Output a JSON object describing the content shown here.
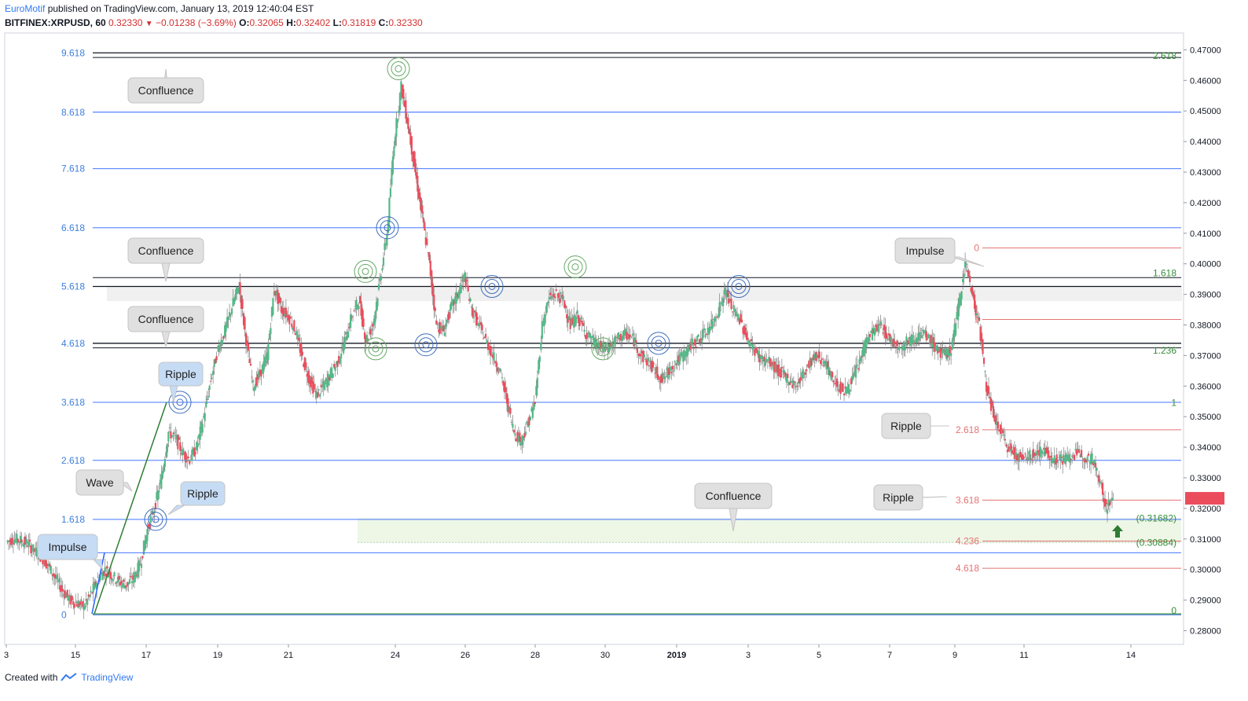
{
  "header": {
    "author": "EuroMotif",
    "published": "published on TradingView.com, January 13, 2019 12:40:04 EST",
    "symbol": "BITFINEX:XRPUSD, 60",
    "last": "0.32330",
    "change": "−0.01238 (−3.69%)",
    "o_label": "O:",
    "o_value": "0.32065",
    "h_label": "H:",
    "h_value": "0.32402",
    "l_label": "L:",
    "l_value": "0.31819",
    "c_label": "C:",
    "c_value": "0.32330"
  },
  "footer": {
    "created_with": "Created with",
    "brand": "TradingView"
  },
  "colors": {
    "up": "#53b987",
    "down": "#eb4d5c",
    "blue_level": "#2962ff",
    "fib_red": "#e57373",
    "fib_green": "#388e3c",
    "dark_line": "#131722",
    "callout_gray": "#e0e0e0",
    "callout_blue": "#c6dcf5"
  },
  "chart_data": {
    "type": "candlestick",
    "title": "BITFINEX:XRPUSD, 60",
    "ylim": [
      0.2755,
      0.4755
    ],
    "y_ticks": [
      "0.47000",
      "0.46000",
      "0.45000",
      "0.44000",
      "0.43000",
      "0.42000",
      "0.41000",
      "0.40000",
      "0.39000",
      "0.38000",
      "0.37000",
      "0.36000",
      "0.35000",
      "0.34000",
      "0.33000",
      "0.32000",
      "0.31000",
      "0.30000",
      "0.29000",
      "0.28000"
    ],
    "x_ticks": [
      "3",
      "15",
      "17",
      "19",
      "21",
      "24",
      "26",
      "28",
      "30",
      "2019",
      "3",
      "5",
      "7",
      "9",
      "11",
      "14"
    ],
    "price_path": [
      [
        0.309,
        0.31,
        0.3095,
        0.3085,
        0.306,
        0.304,
        0.301,
        0.297,
        0.293,
        0.29,
        0.289,
        0.288,
        0.292,
        0.297,
        0.3,
        0.298,
        0.296,
        0.295,
        0.297,
        0.302,
        0.313,
        0.32,
        0.33,
        0.345,
        0.343,
        0.338,
        0.336,
        0.34,
        0.35,
        0.362,
        0.372,
        0.378,
        0.386,
        0.393,
        0.375,
        0.36,
        0.364,
        0.37,
        0.392,
        0.385,
        0.383,
        0.378,
        0.369,
        0.362,
        0.357,
        0.36,
        0.364,
        0.368,
        0.375,
        0.383,
        0.388,
        0.375,
        0.38,
        0.395,
        0.41,
        0.44,
        0.458,
        0.445,
        0.43,
        0.415,
        0.4,
        0.38,
        0.378,
        0.385,
        0.39,
        0.396,
        0.385,
        0.38,
        0.375,
        0.37,
        0.365,
        0.355,
        0.345,
        0.342,
        0.348,
        0.355,
        0.38,
        0.389,
        0.39,
        0.388,
        0.38,
        0.383,
        0.378,
        0.375,
        0.373,
        0.372,
        0.374,
        0.376,
        0.377,
        0.375,
        0.37,
        0.368,
        0.365,
        0.362,
        0.365,
        0.368,
        0.37,
        0.373,
        0.375,
        0.377,
        0.38,
        0.385,
        0.391,
        0.385,
        0.382,
        0.376,
        0.372,
        0.369,
        0.368,
        0.366,
        0.364,
        0.362,
        0.36,
        0.364,
        0.368,
        0.37,
        0.368,
        0.363,
        0.36,
        0.358,
        0.362,
        0.368,
        0.375,
        0.378,
        0.38,
        0.376,
        0.374,
        0.373,
        0.375,
        0.376,
        0.377,
        0.375,
        0.372,
        0.37,
        0.372,
        0.385,
        0.401,
        0.39,
        0.38,
        0.36,
        0.35,
        0.345,
        0.34,
        0.338,
        0.336,
        0.337,
        0.338,
        0.339,
        0.337,
        0.336,
        0.336,
        0.337,
        0.338,
        0.337,
        0.336,
        0.33,
        0.32,
        0.3233
      ]
    ],
    "levels": {
      "left_fib": [
        "9.618",
        "8.618",
        "7.618",
        "6.618",
        "5.618",
        "4.618",
        "3.618",
        "2.618",
        "1.618",
        "0"
      ],
      "left_fib_prices": [
        0.469,
        0.4496,
        0.4311,
        0.4118,
        0.3926,
        0.374,
        0.3547,
        0.3357,
        0.3164,
        0.2852
      ],
      "right_green": [
        "2.618",
        "1.618",
        "1.236",
        "1",
        "0"
      ],
      "right_green_prices": [
        0.468,
        0.397,
        0.3717,
        0.3545,
        0.2866
      ],
      "right_red": [
        "0",
        "1",
        "2.618",
        "3.618",
        "4.236",
        "4.618"
      ],
      "right_red_prices": [
        0.4052,
        0.3818,
        0.3457,
        0.3227,
        0.3093,
        0.3004
      ],
      "zone_labels": [
        "(0.31682)",
        "(0.30884)"
      ],
      "zone_prices": [
        0.31682,
        0.30884
      ]
    },
    "annotations": [
      "Confluence",
      "Confluence",
      "Confluence",
      "Confluence",
      "Impulse",
      "Wave",
      "Ripple",
      "Ripple",
      "Impulse",
      "Ripple",
      "Ripple"
    ]
  }
}
